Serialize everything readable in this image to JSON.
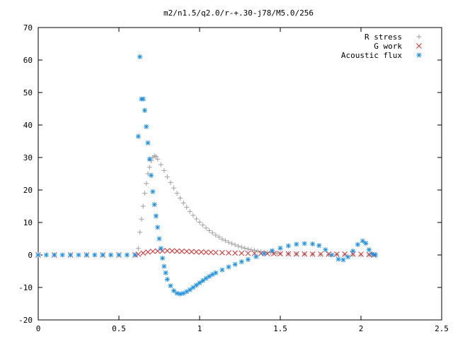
{
  "chart_data": {
    "type": "scatter",
    "title": "m2/n1.5/q2.0/r-+.30-j78/M5.0/256",
    "xlabel": "",
    "ylabel": "",
    "xlim": [
      0,
      2.5
    ],
    "ylim": [
      -20,
      70
    ],
    "x_ticks": [
      "0",
      "0.5",
      "1",
      "1.5",
      "2",
      "2.5"
    ],
    "y_ticks": [
      "-20",
      "-10",
      "0",
      "10",
      "20",
      "30",
      "40",
      "50",
      "60",
      "70"
    ],
    "grid": false,
    "legend_position": "top-right",
    "series": [
      {
        "name": "R stress",
        "marker": "plus",
        "color": "#a0a0a0",
        "x": [
          0,
          0.05,
          0.1,
          0.15,
          0.2,
          0.25,
          0.3,
          0.35,
          0.4,
          0.45,
          0.5,
          0.55,
          0.6,
          0.62,
          0.63,
          0.64,
          0.65,
          0.66,
          0.67,
          0.68,
          0.69,
          0.7,
          0.71,
          0.72,
          0.73,
          0.74,
          0.76,
          0.78,
          0.8,
          0.82,
          0.84,
          0.86,
          0.88,
          0.9,
          0.92,
          0.94,
          0.96,
          0.98,
          1.0,
          1.02,
          1.04,
          1.06,
          1.08,
          1.1,
          1.12,
          1.14,
          1.16,
          1.18,
          1.2,
          1.22,
          1.24,
          1.26,
          1.28,
          1.3,
          1.32,
          1.34,
          1.36,
          1.38,
          1.4,
          1.42,
          1.44,
          1.46,
          1.48,
          1.5,
          1.55,
          1.6,
          1.65,
          1.7,
          1.75,
          1.8,
          1.85,
          1.9,
          1.95,
          2.0,
          2.05,
          2.08
        ],
        "y": [
          0,
          0,
          0,
          0,
          0,
          0,
          0,
          0,
          0,
          0,
          0,
          0,
          0,
          2,
          7,
          11,
          15,
          19,
          22,
          25,
          27,
          29,
          30,
          30.5,
          30.3,
          29.5,
          27.8,
          26,
          24,
          22.3,
          20.6,
          19,
          17.5,
          16,
          14.7,
          13.4,
          12.2,
          11.1,
          10.1,
          9.2,
          8.3,
          7.5,
          6.8,
          6.1,
          5.5,
          4.9,
          4.4,
          3.9,
          3.5,
          3.1,
          2.7,
          2.4,
          2.1,
          1.8,
          1.6,
          1.4,
          1.2,
          1.0,
          0.9,
          0.8,
          0.7,
          0.6,
          0.5,
          0.45,
          0.35,
          0.3,
          0.25,
          0.2,
          0.15,
          0.1,
          0.1,
          0.05,
          0.05,
          0,
          0,
          0
        ]
      },
      {
        "name": "G work",
        "marker": "cross",
        "color": "#d03030",
        "x": [
          0,
          0.1,
          0.2,
          0.3,
          0.4,
          0.5,
          0.6,
          0.62,
          0.65,
          0.68,
          0.71,
          0.74,
          0.77,
          0.8,
          0.83,
          0.86,
          0.89,
          0.92,
          0.95,
          0.98,
          1.01,
          1.04,
          1.07,
          1.1,
          1.14,
          1.18,
          1.22,
          1.26,
          1.3,
          1.34,
          1.38,
          1.42,
          1.46,
          1.5,
          1.55,
          1.6,
          1.65,
          1.7,
          1.75,
          1.8,
          1.85,
          1.9,
          1.95,
          2.0,
          2.05,
          2.08
        ],
        "y": [
          0,
          0,
          0,
          0,
          0,
          0,
          0,
          0.2,
          0.6,
          0.9,
          1.1,
          1.2,
          1.25,
          1.3,
          1.25,
          1.2,
          1.15,
          1.1,
          1.0,
          0.95,
          0.9,
          0.85,
          0.8,
          0.75,
          0.7,
          0.65,
          0.6,
          0.55,
          0.5,
          0.48,
          0.45,
          0.42,
          0.4,
          0.38,
          0.35,
          0.3,
          0.3,
          0.28,
          0.26,
          0.25,
          0.25,
          0.25,
          0.25,
          0.2,
          0.1,
          0
        ]
      },
      {
        "name": "Acoustic flux",
        "marker": "star",
        "color": "#1e90e0",
        "x": [
          0,
          0.05,
          0.1,
          0.15,
          0.2,
          0.25,
          0.3,
          0.35,
          0.4,
          0.45,
          0.5,
          0.55,
          0.6,
          0.62,
          0.63,
          0.64,
          0.65,
          0.66,
          0.67,
          0.68,
          0.69,
          0.7,
          0.71,
          0.72,
          0.73,
          0.74,
          0.75,
          0.76,
          0.77,
          0.78,
          0.79,
          0.8,
          0.82,
          0.84,
          0.86,
          0.88,
          0.9,
          0.92,
          0.94,
          0.96,
          0.98,
          1.0,
          1.02,
          1.04,
          1.06,
          1.08,
          1.1,
          1.14,
          1.18,
          1.22,
          1.26,
          1.3,
          1.35,
          1.4,
          1.45,
          1.5,
          1.55,
          1.6,
          1.65,
          1.7,
          1.74,
          1.78,
          1.82,
          1.86,
          1.89,
          1.92,
          1.95,
          1.98,
          2.01,
          2.03,
          2.05,
          2.07,
          2.09
        ],
        "y": [
          0,
          0,
          0,
          0,
          0,
          0,
          0,
          0,
          0,
          0,
          0,
          0,
          0,
          36.5,
          61,
          48,
          48,
          44.5,
          39.5,
          34.5,
          29.5,
          24.5,
          19.5,
          15.5,
          12,
          8.5,
          5,
          2,
          -1,
          -3.5,
          -5.5,
          -7.5,
          -9.5,
          -11,
          -11.8,
          -12,
          -11.8,
          -11.3,
          -10.7,
          -10,
          -9.3,
          -8.6,
          -7.9,
          -7.2,
          -6.6,
          -6,
          -5.5,
          -4.6,
          -3.7,
          -2.9,
          -2.1,
          -1.4,
          -0.5,
          0.4,
          1.3,
          2.1,
          2.8,
          3.3,
          3.5,
          3.4,
          2.9,
          1.6,
          0,
          -1.3,
          -1.5,
          -0.6,
          1.2,
          3.2,
          4.3,
          3.6,
          1.6,
          0.3,
          0
        ]
      }
    ]
  }
}
